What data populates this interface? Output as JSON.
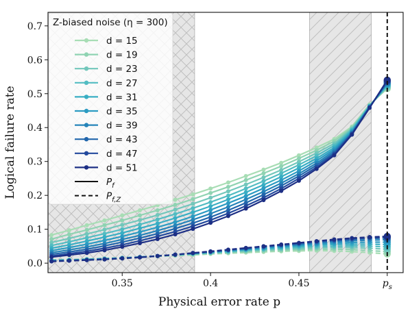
{
  "chart_data": {
    "type": "line",
    "xlabel": "Physical error rate p",
    "ylabel": "Logical failure rate",
    "xlim": [
      0.308,
      0.509
    ],
    "ylim": [
      -0.028,
      0.74
    ],
    "x_ticks": [
      0.35,
      0.4,
      0.45,
      0.5
    ],
    "x_tick_labels": [
      "0.35",
      "0.4",
      "0.45",
      "p_s"
    ],
    "y_ticks": [
      0.0,
      0.1,
      0.2,
      0.3,
      0.4,
      0.5,
      0.6,
      0.7
    ],
    "y_tick_labels": [
      "0.0",
      "0.1",
      "0.2",
      "0.3",
      "0.4",
      "0.5",
      "0.6",
      "0.7"
    ],
    "grid": false,
    "legend": {
      "title": "Z-biased noise (η = 300)",
      "placement": "top-left",
      "style_entries": [
        {
          "label": "P_f",
          "linestyle": "solid"
        },
        {
          "label": "P_f,Z",
          "linestyle": "dashed"
        }
      ]
    },
    "shaded_regions": [
      {
        "x0": 0.308,
        "x1": 0.391,
        "hatch": "cross"
      },
      {
        "x0": 0.456,
        "x1": 0.491,
        "hatch": "diagonal"
      }
    ],
    "vertical_line": {
      "x": 0.5,
      "linestyle": "dashed",
      "label": "p_s"
    },
    "x": [
      0.31,
      0.32,
      0.33,
      0.34,
      0.35,
      0.36,
      0.37,
      0.38,
      0.39,
      0.4,
      0.41,
      0.42,
      0.43,
      0.44,
      0.45,
      0.46,
      0.47,
      0.48,
      0.49,
      0.5
    ],
    "series": [
      {
        "name": "d = 15",
        "color": "#a8ddb5",
        "linestyle": "solid",
        "values": [
          0.083,
          0.097,
          0.112,
          0.126,
          0.141,
          0.156,
          0.171,
          0.187,
          0.203,
          0.22,
          0.238,
          0.257,
          0.276,
          0.296,
          0.318,
          0.341,
          0.366,
          0.403,
          0.468,
          0.515
        ]
      },
      {
        "name": "d = 19",
        "color": "#8fd3b2",
        "linestyle": "solid",
        "values": [
          0.071,
          0.085,
          0.098,
          0.112,
          0.126,
          0.141,
          0.156,
          0.172,
          0.189,
          0.207,
          0.225,
          0.245,
          0.265,
          0.286,
          0.309,
          0.333,
          0.36,
          0.4,
          0.466,
          0.518
        ]
      },
      {
        "name": "d = 23",
        "color": "#72c7bb",
        "linestyle": "solid",
        "values": [
          0.061,
          0.073,
          0.086,
          0.099,
          0.113,
          0.127,
          0.142,
          0.158,
          0.175,
          0.193,
          0.212,
          0.232,
          0.253,
          0.275,
          0.299,
          0.325,
          0.353,
          0.397,
          0.465,
          0.521
        ]
      },
      {
        "name": "d = 27",
        "color": "#52bcc2",
        "linestyle": "solid",
        "values": [
          0.052,
          0.063,
          0.075,
          0.087,
          0.1,
          0.114,
          0.129,
          0.145,
          0.162,
          0.18,
          0.199,
          0.22,
          0.242,
          0.265,
          0.29,
          0.317,
          0.347,
          0.394,
          0.464,
          0.524
        ]
      },
      {
        "name": "d = 31",
        "color": "#38aec3",
        "linestyle": "solid",
        "values": [
          0.044,
          0.054,
          0.065,
          0.077,
          0.089,
          0.103,
          0.117,
          0.133,
          0.15,
          0.168,
          0.188,
          0.209,
          0.231,
          0.255,
          0.281,
          0.309,
          0.341,
          0.391,
          0.463,
          0.527
        ]
      },
      {
        "name": "d = 35",
        "color": "#2b9bc2",
        "linestyle": "solid",
        "values": [
          0.037,
          0.046,
          0.056,
          0.067,
          0.079,
          0.092,
          0.106,
          0.121,
          0.138,
          0.157,
          0.177,
          0.198,
          0.221,
          0.245,
          0.272,
          0.302,
          0.336,
          0.388,
          0.462,
          0.53
        ]
      },
      {
        "name": "d = 39",
        "color": "#2584b9",
        "linestyle": "solid",
        "values": [
          0.031,
          0.039,
          0.048,
          0.058,
          0.07,
          0.082,
          0.096,
          0.111,
          0.128,
          0.146,
          0.166,
          0.188,
          0.211,
          0.236,
          0.264,
          0.295,
          0.331,
          0.385,
          0.461,
          0.532
        ]
      },
      {
        "name": "d = 43",
        "color": "#2166ac",
        "linestyle": "solid",
        "values": [
          0.026,
          0.033,
          0.041,
          0.051,
          0.062,
          0.074,
          0.087,
          0.102,
          0.118,
          0.136,
          0.156,
          0.178,
          0.202,
          0.228,
          0.257,
          0.289,
          0.326,
          0.383,
          0.46,
          0.535
        ]
      },
      {
        "name": "d = 47",
        "color": "#23499d",
        "linestyle": "solid",
        "values": [
          0.021,
          0.028,
          0.035,
          0.044,
          0.054,
          0.066,
          0.079,
          0.093,
          0.109,
          0.127,
          0.147,
          0.169,
          0.193,
          0.22,
          0.25,
          0.283,
          0.322,
          0.381,
          0.459,
          0.538
        ]
      },
      {
        "name": "d = 51",
        "color": "#1d2f85",
        "linestyle": "solid",
        "values": [
          0.018,
          0.024,
          0.03,
          0.038,
          0.048,
          0.059,
          0.071,
          0.085,
          0.101,
          0.119,
          0.139,
          0.161,
          0.186,
          0.213,
          0.243,
          0.278,
          0.318,
          0.379,
          0.458,
          0.54
        ]
      },
      {
        "color": "#a8ddb5",
        "linestyle": "dashed",
        "values": [
          0.01,
          0.011,
          0.012,
          0.014,
          0.016,
          0.018,
          0.02,
          0.022,
          0.024,
          0.027,
          0.029,
          0.031,
          0.033,
          0.035,
          0.036,
          0.037,
          0.036,
          0.034,
          0.031,
          0.027
        ]
      },
      {
        "color": "#8fd3b2",
        "linestyle": "dashed",
        "values": [
          0.009,
          0.01,
          0.012,
          0.014,
          0.016,
          0.018,
          0.021,
          0.023,
          0.026,
          0.029,
          0.031,
          0.034,
          0.036,
          0.038,
          0.04,
          0.041,
          0.041,
          0.04,
          0.037,
          0.034
        ]
      },
      {
        "color": "#72c7bb",
        "linestyle": "dashed",
        "values": [
          0.009,
          0.01,
          0.011,
          0.013,
          0.016,
          0.018,
          0.021,
          0.024,
          0.027,
          0.03,
          0.033,
          0.036,
          0.039,
          0.041,
          0.043,
          0.045,
          0.046,
          0.046,
          0.044,
          0.041
        ]
      },
      {
        "color": "#52bcc2",
        "linestyle": "dashed",
        "values": [
          0.008,
          0.009,
          0.011,
          0.013,
          0.015,
          0.018,
          0.021,
          0.024,
          0.028,
          0.031,
          0.034,
          0.038,
          0.041,
          0.044,
          0.047,
          0.049,
          0.05,
          0.051,
          0.05,
          0.048
        ]
      },
      {
        "color": "#38aec3",
        "linestyle": "dashed",
        "values": [
          0.008,
          0.009,
          0.011,
          0.013,
          0.015,
          0.018,
          0.021,
          0.025,
          0.028,
          0.032,
          0.036,
          0.04,
          0.043,
          0.047,
          0.05,
          0.053,
          0.055,
          0.056,
          0.056,
          0.055
        ]
      },
      {
        "color": "#2b9bc2",
        "linestyle": "dashed",
        "values": [
          0.007,
          0.008,
          0.01,
          0.012,
          0.015,
          0.018,
          0.021,
          0.025,
          0.029,
          0.033,
          0.037,
          0.041,
          0.045,
          0.049,
          0.053,
          0.056,
          0.059,
          0.061,
          0.062,
          0.062
        ]
      },
      {
        "color": "#2584b9",
        "linestyle": "dashed",
        "values": [
          0.007,
          0.008,
          0.01,
          0.012,
          0.015,
          0.018,
          0.021,
          0.025,
          0.029,
          0.033,
          0.038,
          0.042,
          0.047,
          0.051,
          0.055,
          0.059,
          0.063,
          0.066,
          0.068,
          0.069
        ]
      },
      {
        "color": "#2166ac",
        "linestyle": "dashed",
        "values": [
          0.006,
          0.008,
          0.01,
          0.012,
          0.014,
          0.017,
          0.021,
          0.025,
          0.029,
          0.034,
          0.039,
          0.043,
          0.048,
          0.053,
          0.057,
          0.062,
          0.066,
          0.07,
          0.073,
          0.074
        ]
      },
      {
        "color": "#23499d",
        "linestyle": "dashed",
        "values": [
          0.006,
          0.007,
          0.009,
          0.011,
          0.014,
          0.017,
          0.021,
          0.025,
          0.03,
          0.034,
          0.039,
          0.044,
          0.049,
          0.054,
          0.059,
          0.064,
          0.068,
          0.072,
          0.075,
          0.077
        ]
      },
      {
        "color": "#1d2f85",
        "linestyle": "dashed",
        "values": [
          0.005,
          0.007,
          0.009,
          0.011,
          0.014,
          0.017,
          0.021,
          0.025,
          0.03,
          0.035,
          0.04,
          0.045,
          0.05,
          0.055,
          0.06,
          0.065,
          0.07,
          0.074,
          0.077,
          0.079
        ]
      }
    ]
  }
}
